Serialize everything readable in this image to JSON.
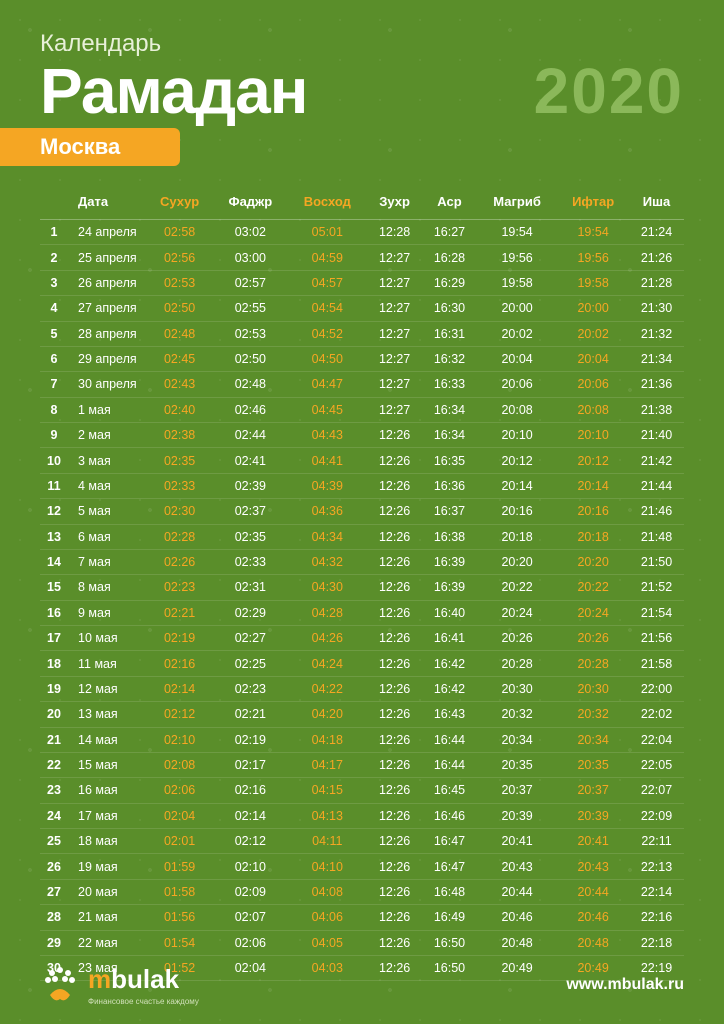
{
  "header": {
    "subtitle": "Календарь",
    "title": "Рамадан",
    "year": "2020",
    "city": "Москва"
  },
  "columns": [
    {
      "label": "",
      "hl": false
    },
    {
      "label": "Дата",
      "hl": false
    },
    {
      "label": "Сухур",
      "hl": true
    },
    {
      "label": "Фаджр",
      "hl": false
    },
    {
      "label": "Восход",
      "hl": true
    },
    {
      "label": "Зухр",
      "hl": false
    },
    {
      "label": "Аср",
      "hl": false
    },
    {
      "label": "Магриб",
      "hl": false
    },
    {
      "label": "Ифтар",
      "hl": true
    },
    {
      "label": "Иша",
      "hl": false
    }
  ],
  "rows": [
    [
      "1",
      "24 апреля",
      "02:58",
      "03:02",
      "05:01",
      "12:28",
      "16:27",
      "19:54",
      "19:54",
      "21:24"
    ],
    [
      "2",
      "25 апреля",
      "02:56",
      "03:00",
      "04:59",
      "12:27",
      "16:28",
      "19:56",
      "19:56",
      "21:26"
    ],
    [
      "3",
      "26 апреля",
      "02:53",
      "02:57",
      "04:57",
      "12:27",
      "16:29",
      "19:58",
      "19:58",
      "21:28"
    ],
    [
      "4",
      "27 апреля",
      "02:50",
      "02:55",
      "04:54",
      "12:27",
      "16:30",
      "20:00",
      "20:00",
      "21:30"
    ],
    [
      "5",
      "28 апреля",
      "02:48",
      "02:53",
      "04:52",
      "12:27",
      "16:31",
      "20:02",
      "20:02",
      "21:32"
    ],
    [
      "6",
      "29 апреля",
      "02:45",
      "02:50",
      "04:50",
      "12:27",
      "16:32",
      "20:04",
      "20:04",
      "21:34"
    ],
    [
      "7",
      "30 апреля",
      "02:43",
      "02:48",
      "04:47",
      "12:27",
      "16:33",
      "20:06",
      "20:06",
      "21:36"
    ],
    [
      "8",
      "1 мая",
      "02:40",
      "02:46",
      "04:45",
      "12:27",
      "16:34",
      "20:08",
      "20:08",
      "21:38"
    ],
    [
      "9",
      "2 мая",
      "02:38",
      "02:44",
      "04:43",
      "12:26",
      "16:34",
      "20:10",
      "20:10",
      "21:40"
    ],
    [
      "10",
      "3 мая",
      "02:35",
      "02:41",
      "04:41",
      "12:26",
      "16:35",
      "20:12",
      "20:12",
      "21:42"
    ],
    [
      "11",
      "4 мая",
      "02:33",
      "02:39",
      "04:39",
      "12:26",
      "16:36",
      "20:14",
      "20:14",
      "21:44"
    ],
    [
      "12",
      "5 мая",
      "02:30",
      "02:37",
      "04:36",
      "12:26",
      "16:37",
      "20:16",
      "20:16",
      "21:46"
    ],
    [
      "13",
      "6 мая",
      "02:28",
      "02:35",
      "04:34",
      "12:26",
      "16:38",
      "20:18",
      "20:18",
      "21:48"
    ],
    [
      "14",
      "7 мая",
      "02:26",
      "02:33",
      "04:32",
      "12:26",
      "16:39",
      "20:20",
      "20:20",
      "21:50"
    ],
    [
      "15",
      "8 мая",
      "02:23",
      "02:31",
      "04:30",
      "12:26",
      "16:39",
      "20:22",
      "20:22",
      "21:52"
    ],
    [
      "16",
      "9 мая",
      "02:21",
      "02:29",
      "04:28",
      "12:26",
      "16:40",
      "20:24",
      "20:24",
      "21:54"
    ],
    [
      "17",
      "10 мая",
      "02:19",
      "02:27",
      "04:26",
      "12:26",
      "16:41",
      "20:26",
      "20:26",
      "21:56"
    ],
    [
      "18",
      "11 мая",
      "02:16",
      "02:25",
      "04:24",
      "12:26",
      "16:42",
      "20:28",
      "20:28",
      "21:58"
    ],
    [
      "19",
      "12 мая",
      "02:14",
      "02:23",
      "04:22",
      "12:26",
      "16:42",
      "20:30",
      "20:30",
      "22:00"
    ],
    [
      "20",
      "13 мая",
      "02:12",
      "02:21",
      "04:20",
      "12:26",
      "16:43",
      "20:32",
      "20:32",
      "22:02"
    ],
    [
      "21",
      "14 мая",
      "02:10",
      "02:19",
      "04:18",
      "12:26",
      "16:44",
      "20:34",
      "20:34",
      "22:04"
    ],
    [
      "22",
      "15 мая",
      "02:08",
      "02:17",
      "04:17",
      "12:26",
      "16:44",
      "20:35",
      "20:35",
      "22:05"
    ],
    [
      "23",
      "16 мая",
      "02:06",
      "02:16",
      "04:15",
      "12:26",
      "16:45",
      "20:37",
      "20:37",
      "22:07"
    ],
    [
      "24",
      "17 мая",
      "02:04",
      "02:14",
      "04:13",
      "12:26",
      "16:46",
      "20:39",
      "20:39",
      "22:09"
    ],
    [
      "25",
      "18 мая",
      "02:01",
      "02:12",
      "04:11",
      "12:26",
      "16:47",
      "20:41",
      "20:41",
      "22:11"
    ],
    [
      "26",
      "19 мая",
      "01:59",
      "02:10",
      "04:10",
      "12:26",
      "16:47",
      "20:43",
      "20:43",
      "22:13"
    ],
    [
      "27",
      "20 мая",
      "01:58",
      "02:09",
      "04:08",
      "12:26",
      "16:48",
      "20:44",
      "20:44",
      "22:14"
    ],
    [
      "28",
      "21 мая",
      "01:56",
      "02:07",
      "04:06",
      "12:26",
      "16:49",
      "20:46",
      "20:46",
      "22:16"
    ],
    [
      "29",
      "22 мая",
      "01:54",
      "02:06",
      "04:05",
      "12:26",
      "16:50",
      "20:48",
      "20:48",
      "22:18"
    ],
    [
      "30",
      "23 мая",
      "01:52",
      "02:04",
      "04:03",
      "12:26",
      "16:50",
      "20:49",
      "20:49",
      "22:19"
    ]
  ],
  "highlight_cols": [
    2,
    4,
    8
  ],
  "footer": {
    "brand_prefix": "m",
    "brand_suffix": "bulak",
    "tagline": "Финансовое счастье каждому",
    "url": "www.mbulak.ru"
  },
  "colors": {
    "bg": "#5a8e2a",
    "accent": "#f5a623",
    "year": "#8bb85a"
  }
}
